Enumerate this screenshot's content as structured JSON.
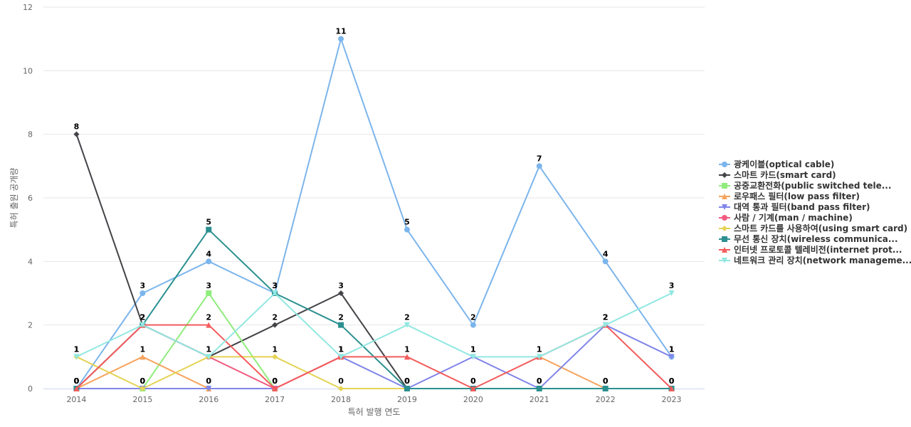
{
  "chart_data": {
    "type": "line",
    "xlabel": "특허 발행 연도",
    "ylabel": "특허 출원 공개량",
    "ylim": [
      0,
      12
    ],
    "yticks": [
      0,
      2,
      4,
      6,
      8,
      10,
      12
    ],
    "grid": true,
    "legend_position": "right",
    "categories": [
      "2014",
      "2015",
      "2016",
      "2017",
      "2018",
      "2019",
      "2020",
      "2021",
      "2022",
      "2023"
    ],
    "series": [
      {
        "name": "광케이블(optical cable)",
        "color": "#7cb5ec",
        "marker": "circle",
        "values": [
          0,
          3,
          4,
          3,
          11,
          5,
          2,
          7,
          4,
          1
        ]
      },
      {
        "name": "스마트 카드(smart card)",
        "color": "#434348",
        "marker": "diamond",
        "values": [
          8,
          2,
          1,
          2,
          3,
          0,
          null,
          null,
          null,
          null
        ]
      },
      {
        "name": "공중교환전화(public switched tele...",
        "color": "#90ed7d",
        "marker": "square",
        "values": [
          null,
          0,
          3,
          0,
          null,
          null,
          null,
          null,
          null,
          null
        ]
      },
      {
        "name": "로우패스 필터(low pass filter)",
        "color": "#f7a35c",
        "marker": "triangle",
        "values": [
          0,
          1,
          0,
          null,
          null,
          null,
          null,
          1,
          0,
          null
        ]
      },
      {
        "name": "대역 통과 필터(band pass filter)",
        "color": "#8085e9",
        "marker": "triangle-down",
        "values": [
          0,
          0,
          0,
          0,
          1,
          0,
          1,
          0,
          2,
          1
        ]
      },
      {
        "name": "사람 / 기계(man / machine)",
        "color": "#f15c80",
        "marker": "circle",
        "values": [
          0,
          2,
          1,
          0,
          1,
          null,
          null,
          null,
          null,
          null
        ]
      },
      {
        "name": "스마트 카드를 사용하여(using smart card)",
        "color": "#e4d354",
        "marker": "diamond",
        "values": [
          1,
          0,
          1,
          1,
          0,
          0,
          null,
          null,
          null,
          null
        ]
      },
      {
        "name": "무선 통신 장치(wireless communica...",
        "color": "#2b908f",
        "marker": "square",
        "values": [
          0,
          2,
          5,
          3,
          2,
          0,
          0,
          0,
          0,
          0
        ]
      },
      {
        "name": "인터넷 프로토콜 텔레비전(internet prot...",
        "color": "#f45b5b",
        "marker": "triangle",
        "values": [
          0,
          2,
          2,
          0,
          1,
          1,
          0,
          1,
          2,
          0
        ]
      },
      {
        "name": "네트워크 관리 장치(network manageme...",
        "color": "#91e8e1",
        "marker": "triangle-down",
        "values": [
          1,
          2,
          1,
          3,
          1,
          2,
          1,
          1,
          2,
          3
        ]
      }
    ]
  }
}
